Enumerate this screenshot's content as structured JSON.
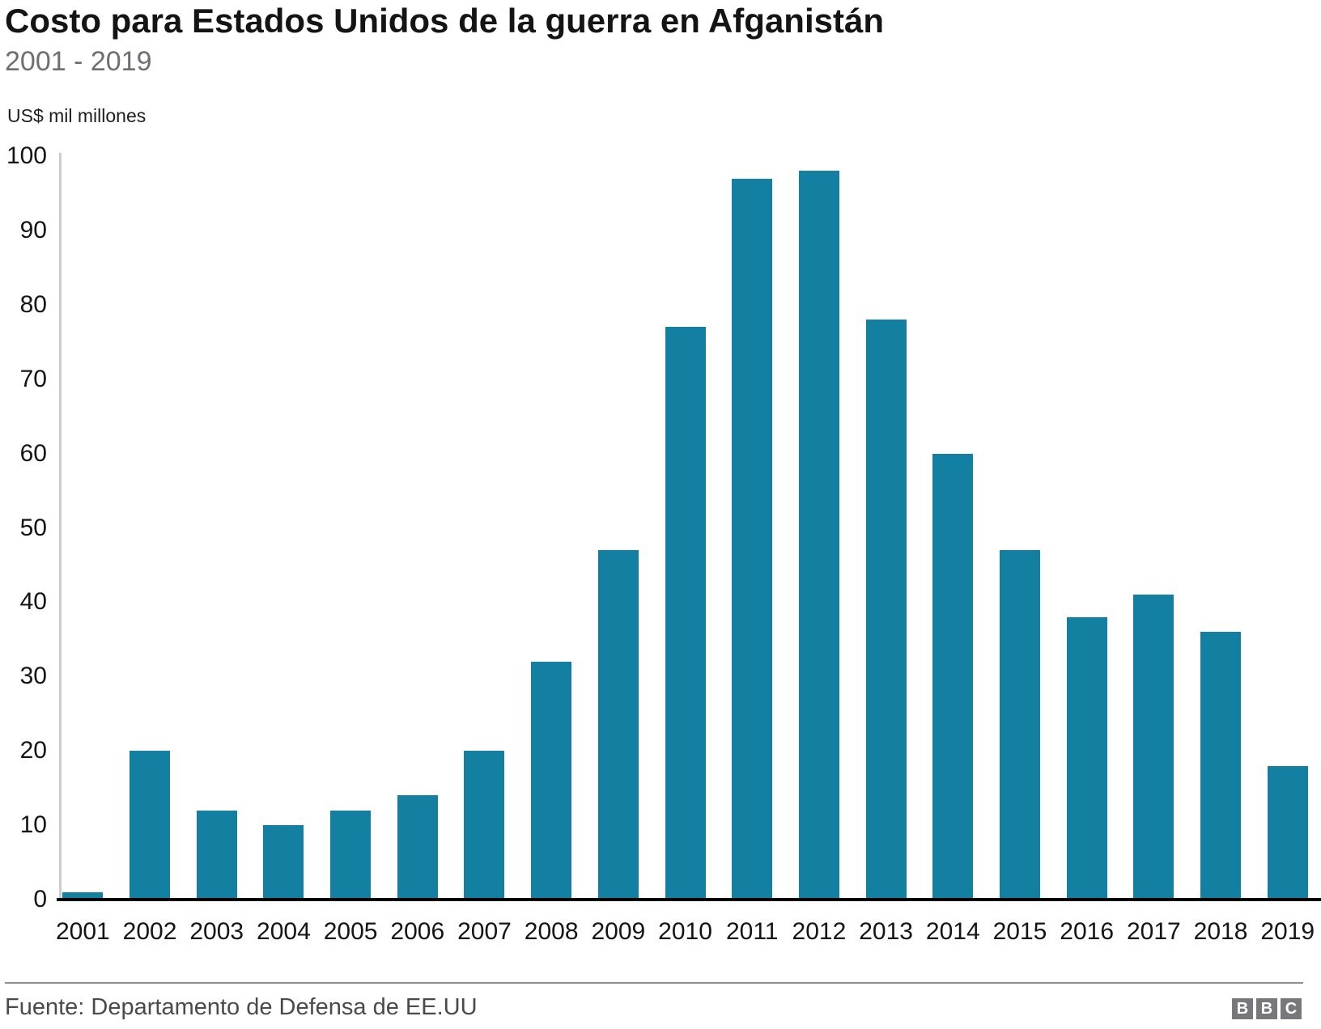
{
  "header": {
    "title": "Costo para Estados Unidos de la guerra en Afganistán",
    "subtitle": "2001 - 2019"
  },
  "chart_data": {
    "type": "bar",
    "title": "Costo para Estados Unidos de la guerra en Afganistán",
    "subtitle": "2001 - 2019",
    "categories": [
      "2001",
      "2002",
      "2003",
      "2004",
      "2005",
      "2006",
      "2007",
      "2008",
      "2009",
      "2010",
      "2011",
      "2012",
      "2013",
      "2014",
      "2015",
      "2016",
      "2017",
      "2018",
      "2019"
    ],
    "values": [
      1,
      20,
      12,
      10,
      12,
      14,
      20,
      32,
      47,
      77,
      97,
      98,
      78,
      60,
      47,
      38,
      41,
      36,
      18
    ],
    "xlabel": "",
    "ylabel": "US$ mil millones",
    "ylim": [
      0,
      100
    ],
    "yticks": [
      0,
      10,
      20,
      30,
      40,
      50,
      60,
      70,
      80,
      90,
      100
    ],
    "grid": false,
    "legend": false,
    "bar_color": "#1380A1"
  },
  "footer": {
    "source": "Fuente: Departamento de Defensa de EE.UU",
    "logo_letters": [
      "B",
      "B",
      "C"
    ]
  },
  "colors": {
    "bar": "#1380A1",
    "title_text": "#141414",
    "subtitle_text": "#6e6e73",
    "axis_line": "#cccccc",
    "baseline": "#000000",
    "divider": "#8d8d92",
    "source_text": "#4a4a4e",
    "logo_block": "#77777c"
  }
}
